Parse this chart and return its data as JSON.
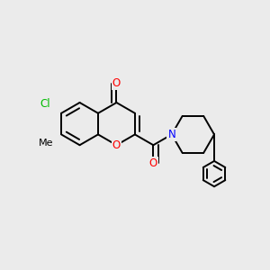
{
  "bg_color": "#ebebeb",
  "bond_color": "#000000",
  "bond_width": 1.4,
  "dbo": 0.055,
  "atom_colors": {
    "O": "#ff0000",
    "N": "#0000ff",
    "Cl": "#00bb00",
    "C": "#000000"
  },
  "font_size": 8.5
}
